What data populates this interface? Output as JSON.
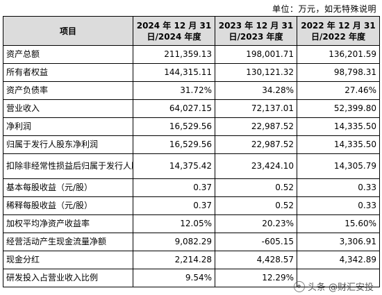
{
  "unit_note": "单位：万元，如无特殊说明",
  "header": {
    "item": "项目",
    "col1_line1": "2024 年 12 月 31",
    "col1_line2": "日/2024 年度",
    "col2_line1": "2023 年 12 月 31",
    "col2_line2": "日/2023 年度",
    "col3_line1": "2022 年 12 月 31",
    "col3_line2": "日/2022 年度"
  },
  "rows": [
    {
      "label": "资产总额",
      "v2024": "211,359.13",
      "v2023": "198,001.71",
      "v2022": "136,201.59"
    },
    {
      "label": "所有者权益",
      "v2024": "144,315.11",
      "v2023": "130,121.32",
      "v2022": "98,798.31"
    },
    {
      "label": "资产负债率",
      "v2024": "31.72%",
      "v2023": "34.28%",
      "v2022": "27.46%"
    },
    {
      "label": "营业收入",
      "v2024": "64,027.15",
      "v2023": "72,137.01",
      "v2022": "52,399.80"
    },
    {
      "label": "净利润",
      "v2024": "16,529.56",
      "v2023": "22,987.52",
      "v2022": "14,335.50"
    },
    {
      "label": "归属于发行人股东净利润",
      "v2024": "16,529.56",
      "v2023": "22,987.52",
      "v2022": "14,335.50"
    },
    {
      "label": "扣除非经常性损益后归属于发行人股东的净利润",
      "v2024": "14,375.42",
      "v2023": "23,424.10",
      "v2022": "14,305.79"
    },
    {
      "label": "基本每股收益（元/股）",
      "v2024": "0.37",
      "v2023": "0.52",
      "v2022": "0.33"
    },
    {
      "label": "稀释每股收益（元/股）",
      "v2024": "0.37",
      "v2023": "0.52",
      "v2022": "0.33"
    },
    {
      "label": "加权平均净资产收益率",
      "v2024": "12.05%",
      "v2023": "20.23%",
      "v2022": "15.60%"
    },
    {
      "label": "经营活动产生现金流量净额",
      "v2024": "9,082.29",
      "v2023": "-605.15",
      "v2022": "3,306.91"
    },
    {
      "label": "现金分红",
      "v2024": "2,214.28",
      "v2023": "4,428.57",
      "v2022": "4,342.89"
    },
    {
      "label": "研发投入占营业收入比例",
      "v2024": "9.54%",
      "v2023": "12.29%",
      "v2022": ""
    }
  ],
  "watermark": "头条 @财汇安投"
}
